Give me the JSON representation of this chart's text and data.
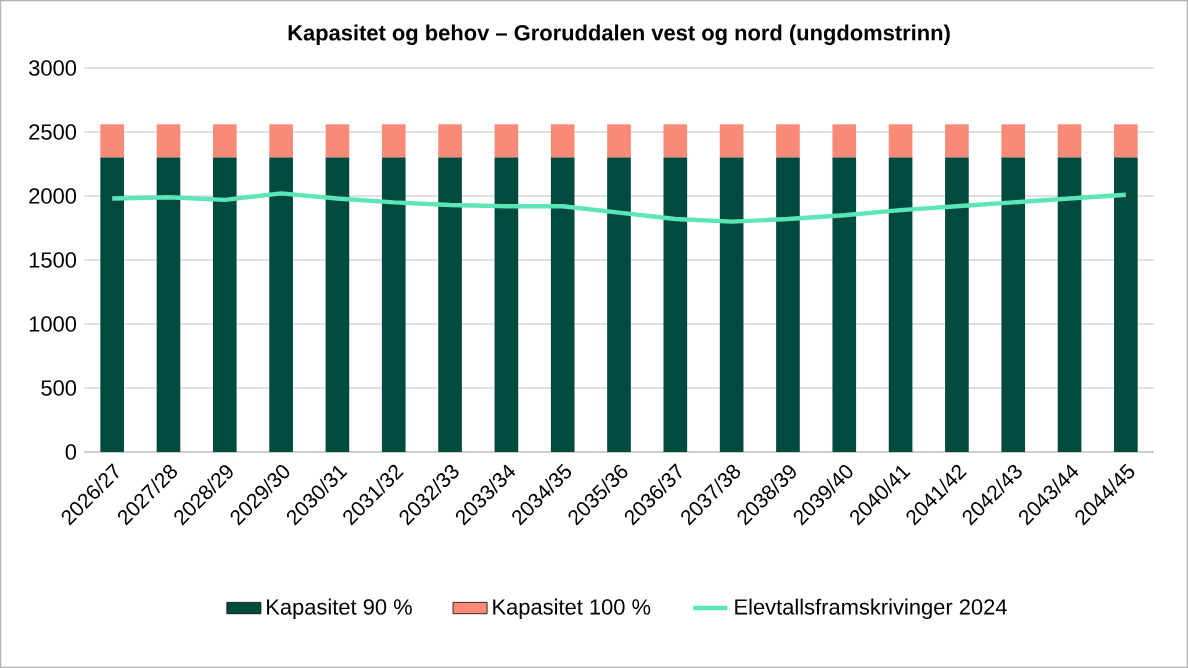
{
  "chart_data": {
    "type": "bar",
    "stacked": true,
    "title": "Kapasitet og behov – Groruddalen vest og nord (ungdomstrinn)",
    "categories": [
      "2026/27",
      "2027/28",
      "2028/29",
      "2029/30",
      "2030/31",
      "2031/32",
      "2032/33",
      "2033/34",
      "2034/35",
      "2035/36",
      "2036/37",
      "2037/38",
      "2038/39",
      "2039/40",
      "2040/41",
      "2041/42",
      "2042/43",
      "2043/44",
      "2044/45"
    ],
    "series": [
      {
        "name": "Kapasitet 90 %",
        "color": "#004a3f",
        "values": [
          2300,
          2300,
          2300,
          2300,
          2300,
          2300,
          2300,
          2300,
          2300,
          2300,
          2300,
          2300,
          2300,
          2300,
          2300,
          2300,
          2300,
          2300,
          2300
        ]
      },
      {
        "name": "Kapasitet 100 %",
        "color": "#fa8a78",
        "values": [
          260,
          260,
          260,
          260,
          260,
          260,
          260,
          260,
          260,
          260,
          260,
          260,
          260,
          260,
          260,
          260,
          260,
          260,
          260
        ]
      },
      {
        "name": "Elevtallsframskrivinger 2024",
        "type": "line",
        "color": "#5ce6b8",
        "values": [
          1980,
          1990,
          1970,
          2020,
          1980,
          1950,
          1930,
          1920,
          1920,
          1870,
          1820,
          1800,
          1820,
          1850,
          1890,
          1920,
          1950,
          1980,
          2010
        ]
      }
    ],
    "ylim": [
      0,
      3000
    ],
    "yticks": [
      0,
      500,
      1000,
      1500,
      2000,
      2500,
      3000
    ],
    "grid": "y",
    "legend": "bottom",
    "marker": "none",
    "line_style": "solid"
  }
}
